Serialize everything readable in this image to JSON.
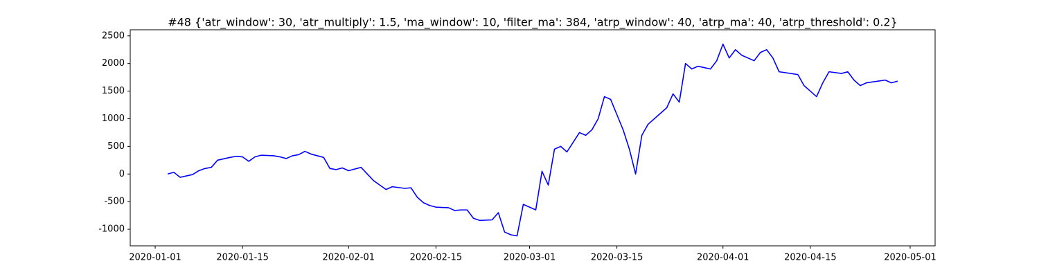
{
  "chart_data": {
    "type": "line",
    "title": "#48 {'atr_window': 30, 'atr_multiply': 1.5, 'ma_window': 10, 'filter_ma': 384, 'atrp_window': 40, 'atrp_ma': 40, 'atrp_threshold': 0.2}",
    "x": [
      "2020-01-03",
      "2020-01-04",
      "2020-01-05",
      "2020-01-07",
      "2020-01-08",
      "2020-01-09",
      "2020-01-10",
      "2020-01-11",
      "2020-01-13",
      "2020-01-14",
      "2020-01-15",
      "2020-01-16",
      "2020-01-17",
      "2020-01-18",
      "2020-01-20",
      "2020-01-21",
      "2020-01-22",
      "2020-01-23",
      "2020-01-24",
      "2020-01-25",
      "2020-01-26",
      "2020-01-27",
      "2020-01-28",
      "2020-01-29",
      "2020-01-30",
      "2020-01-31",
      "2020-02-01",
      "2020-02-03",
      "2020-02-04",
      "2020-02-05",
      "2020-02-06",
      "2020-02-07",
      "2020-02-08",
      "2020-02-10",
      "2020-02-11",
      "2020-02-12",
      "2020-02-13",
      "2020-02-14",
      "2020-02-15",
      "2020-02-17",
      "2020-02-18",
      "2020-02-19",
      "2020-02-20",
      "2020-02-21",
      "2020-02-22",
      "2020-02-24",
      "2020-02-25",
      "2020-02-26",
      "2020-02-27",
      "2020-02-28",
      "2020-02-29",
      "2020-03-02",
      "2020-03-03",
      "2020-03-04",
      "2020-03-05",
      "2020-03-06",
      "2020-03-07",
      "2020-03-09",
      "2020-03-10",
      "2020-03-11",
      "2020-03-12",
      "2020-03-13",
      "2020-03-14",
      "2020-03-16",
      "2020-03-17",
      "2020-03-18",
      "2020-03-19",
      "2020-03-20",
      "2020-03-21",
      "2020-03-23",
      "2020-03-24",
      "2020-03-25",
      "2020-03-26",
      "2020-03-27",
      "2020-03-28",
      "2020-03-30",
      "2020-03-31",
      "2020-04-01",
      "2020-04-02",
      "2020-04-03",
      "2020-04-04",
      "2020-04-06",
      "2020-04-07",
      "2020-04-08",
      "2020-04-09",
      "2020-04-10",
      "2020-04-13",
      "2020-04-14",
      "2020-04-15",
      "2020-04-16",
      "2020-04-17",
      "2020-04-18",
      "2020-04-20",
      "2020-04-21",
      "2020-04-22",
      "2020-04-23",
      "2020-04-24",
      "2020-04-27",
      "2020-04-28",
      "2020-04-29"
    ],
    "series": [
      {
        "color": "#0000ff",
        "values": [
          0,
          30,
          -60,
          -10,
          60,
          100,
          120,
          250,
          300,
          320,
          310,
          230,
          310,
          340,
          330,
          310,
          280,
          330,
          350,
          410,
          360,
          330,
          300,
          100,
          80,
          110,
          60,
          120,
          0,
          -120,
          -200,
          -280,
          -230,
          -260,
          -250,
          -420,
          -520,
          -570,
          -600,
          -610,
          -660,
          -650,
          -650,
          -800,
          -840,
          -830,
          -700,
          -1050,
          -1100,
          -1120,
          -550,
          -650,
          50,
          -200,
          450,
          500,
          400,
          750,
          700,
          800,
          1000,
          1400,
          1350,
          800,
          450,
          0,
          700,
          900,
          1000,
          1200,
          1450,
          1300,
          2000,
          1900,
          1950,
          1900,
          2050,
          2350,
          2100,
          2250,
          2150,
          2050,
          2200,
          2250,
          2100,
          1850,
          1800,
          1600,
          1500,
          1400,
          1650,
          1850,
          1820,
          1850,
          1700,
          1600,
          1650,
          1700,
          1650,
          1680
        ]
      }
    ],
    "xlim": [
      "2019-12-28",
      "2020-05-05"
    ],
    "xticks": [
      "2020-01-01",
      "2020-01-15",
      "2020-02-01",
      "2020-02-15",
      "2020-03-01",
      "2020-03-15",
      "2020-04-01",
      "2020-04-15",
      "2020-05-01"
    ],
    "ylim": [
      -1300,
      2610
    ],
    "yticks": [
      -1000,
      -500,
      0,
      500,
      1000,
      1500,
      2000,
      2500
    ]
  }
}
